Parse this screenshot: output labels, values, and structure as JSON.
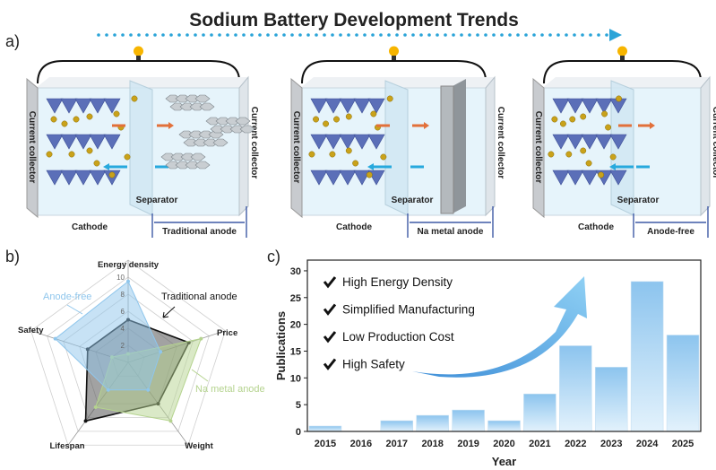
{
  "title": "Sodium Battery Development Trends",
  "panel_a": {
    "label": "a)",
    "cells": [
      {
        "left_collector": "Current collector",
        "right_collector": "Current collector",
        "cathode": "Cathode",
        "separator": "Separator",
        "anode": "Traditional anode",
        "anode_type": "graphite"
      },
      {
        "left_collector": "Current collector",
        "right_collector": "Current collector",
        "cathode": "Cathode",
        "separator": "Separator",
        "anode": "Na metal anode",
        "anode_type": "metal"
      },
      {
        "left_collector": "Current collector",
        "right_collector": "Current collector",
        "cathode": "Cathode",
        "separator": "Separator",
        "anode": "Anode-free",
        "anode_type": "none"
      }
    ],
    "colors": {
      "arrow": "#2aa4d8",
      "anode_free_label": "#b0302a",
      "cathode": "#5b6fb8",
      "sodium": "#c9a21a",
      "charge_arrow": "#e2703a",
      "discharge_arrow": "#27a9dd"
    }
  },
  "chart_data": [
    {
      "type": "radar",
      "panel_label": "b)",
      "axes": [
        "Energy density",
        "Price",
        "Weight",
        "Lifespan",
        "Safety"
      ],
      "range": [
        0,
        10
      ],
      "ticks": [
        "2",
        "4",
        "6",
        "8",
        "10"
      ],
      "series": [
        {
          "name": "Traditional anode",
          "values": [
            5,
            7.5,
            6,
            8.5,
            5
          ],
          "color": "#555555"
        },
        {
          "name": "Na metal anode",
          "values": [
            1,
            9,
            8.5,
            6.5,
            2
          ],
          "color": "#b5d38f"
        },
        {
          "name": "Anode-free",
          "values": [
            9.5,
            4,
            4,
            4,
            9
          ],
          "color": "#8fc6ec"
        }
      ]
    },
    {
      "type": "bar",
      "panel_label": "c)",
      "categories": [
        "2015",
        "2016",
        "2017",
        "2018",
        "2019",
        "2020",
        "2021",
        "2022",
        "2023",
        "2024",
        "2025"
      ],
      "values": [
        1,
        0,
        2,
        3,
        4,
        2,
        7,
        16,
        12,
        28,
        18
      ],
      "xlabel": "Year",
      "ylabel": "Publications",
      "ylim": [
        0,
        32
      ],
      "yticks": [
        "0",
        "5",
        "10",
        "15",
        "20",
        "25",
        "30"
      ],
      "color": "#9fcdef",
      "annotations": [
        "High Energy Density",
        "Simplified Manufacturing",
        "Low Production Cost",
        "High Safety"
      ]
    }
  ]
}
